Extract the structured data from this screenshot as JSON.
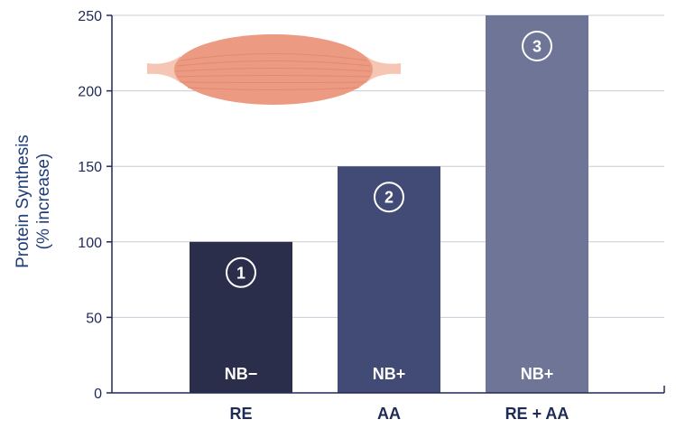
{
  "chart_data": {
    "type": "bar",
    "categories": [
      "RE",
      "AA",
      "RE + AA"
    ],
    "values": [
      100,
      150,
      250
    ],
    "bar_labels": [
      "NB−",
      "NB+",
      "NB+"
    ],
    "bar_numbers": [
      "1",
      "2",
      "3"
    ],
    "ylabel_line1": "Protein Synthesis",
    "ylabel_line2": "(% increase)",
    "ylim": [
      0,
      250
    ],
    "yticks": [
      "0",
      "50",
      "100",
      "150",
      "200",
      "250"
    ],
    "ytick_values": [
      0,
      50,
      100,
      150,
      200,
      250
    ],
    "grid": true,
    "colors": [
      "#2b2e4a",
      "#424a76",
      "#6e7597"
    ],
    "illustration": "muscle-illustration"
  }
}
